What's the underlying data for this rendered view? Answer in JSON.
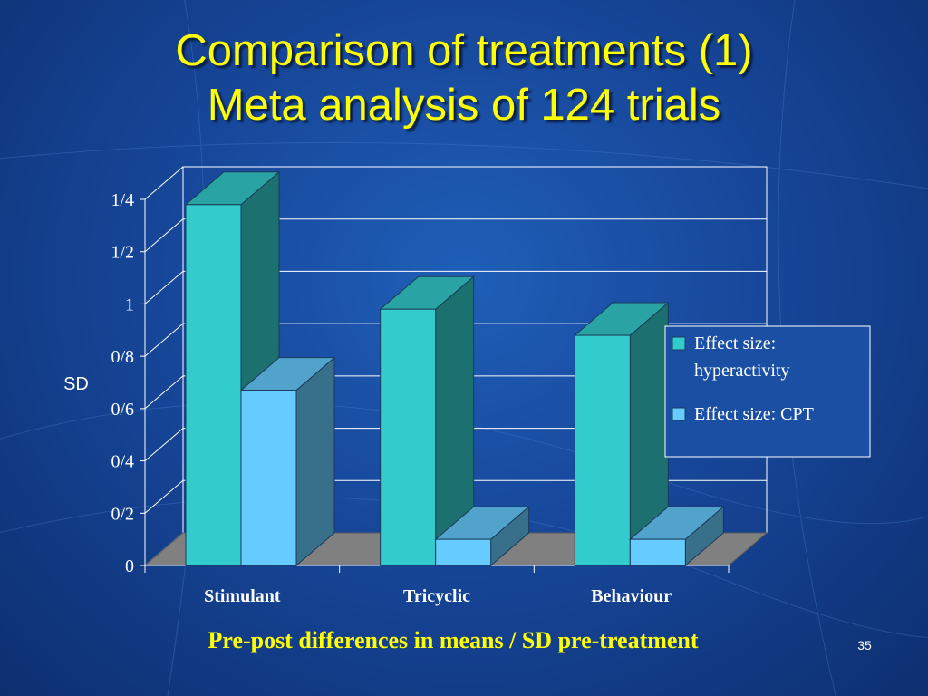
{
  "title": {
    "line1": "Comparison of treatments (1)",
    "line2": "Meta analysis of 124 trials"
  },
  "caption": "Pre-post differences in means / SD pre-treatment",
  "page_number": "35",
  "colors": {
    "background": "#17479a",
    "title": "#ffff00",
    "series_hyperactivity": "#33cccc",
    "series_cpt": "#66ccff",
    "floor": "#808080"
  },
  "chart_data": {
    "type": "bar",
    "categories": [
      "Stimulant",
      "Tricyclic",
      "Behaviour"
    ],
    "series": [
      {
        "name": "Effect size: hyperactivity",
        "values": [
          1.38,
          0.98,
          0.88
        ]
      },
      {
        "name": "Effect size: CPT",
        "values": [
          0.67,
          0.1,
          0.1
        ]
      }
    ],
    "ylabel": "SD",
    "ylim": [
      0,
      1.4
    ],
    "y_ticks": [
      0,
      0.2,
      0.4,
      0.6,
      0.8,
      1,
      1.2,
      1.4
    ],
    "y_tick_labels": [
      "0",
      "0/2",
      "0/4",
      "0/6",
      "0/8",
      "1",
      "1/2",
      "1/4"
    ],
    "grid": true,
    "legend_position": "right",
    "legend_lines": [
      [
        "Effect size:",
        "hyperactivity"
      ],
      [
        "Effect size: CPT"
      ]
    ],
    "style": "3d"
  }
}
